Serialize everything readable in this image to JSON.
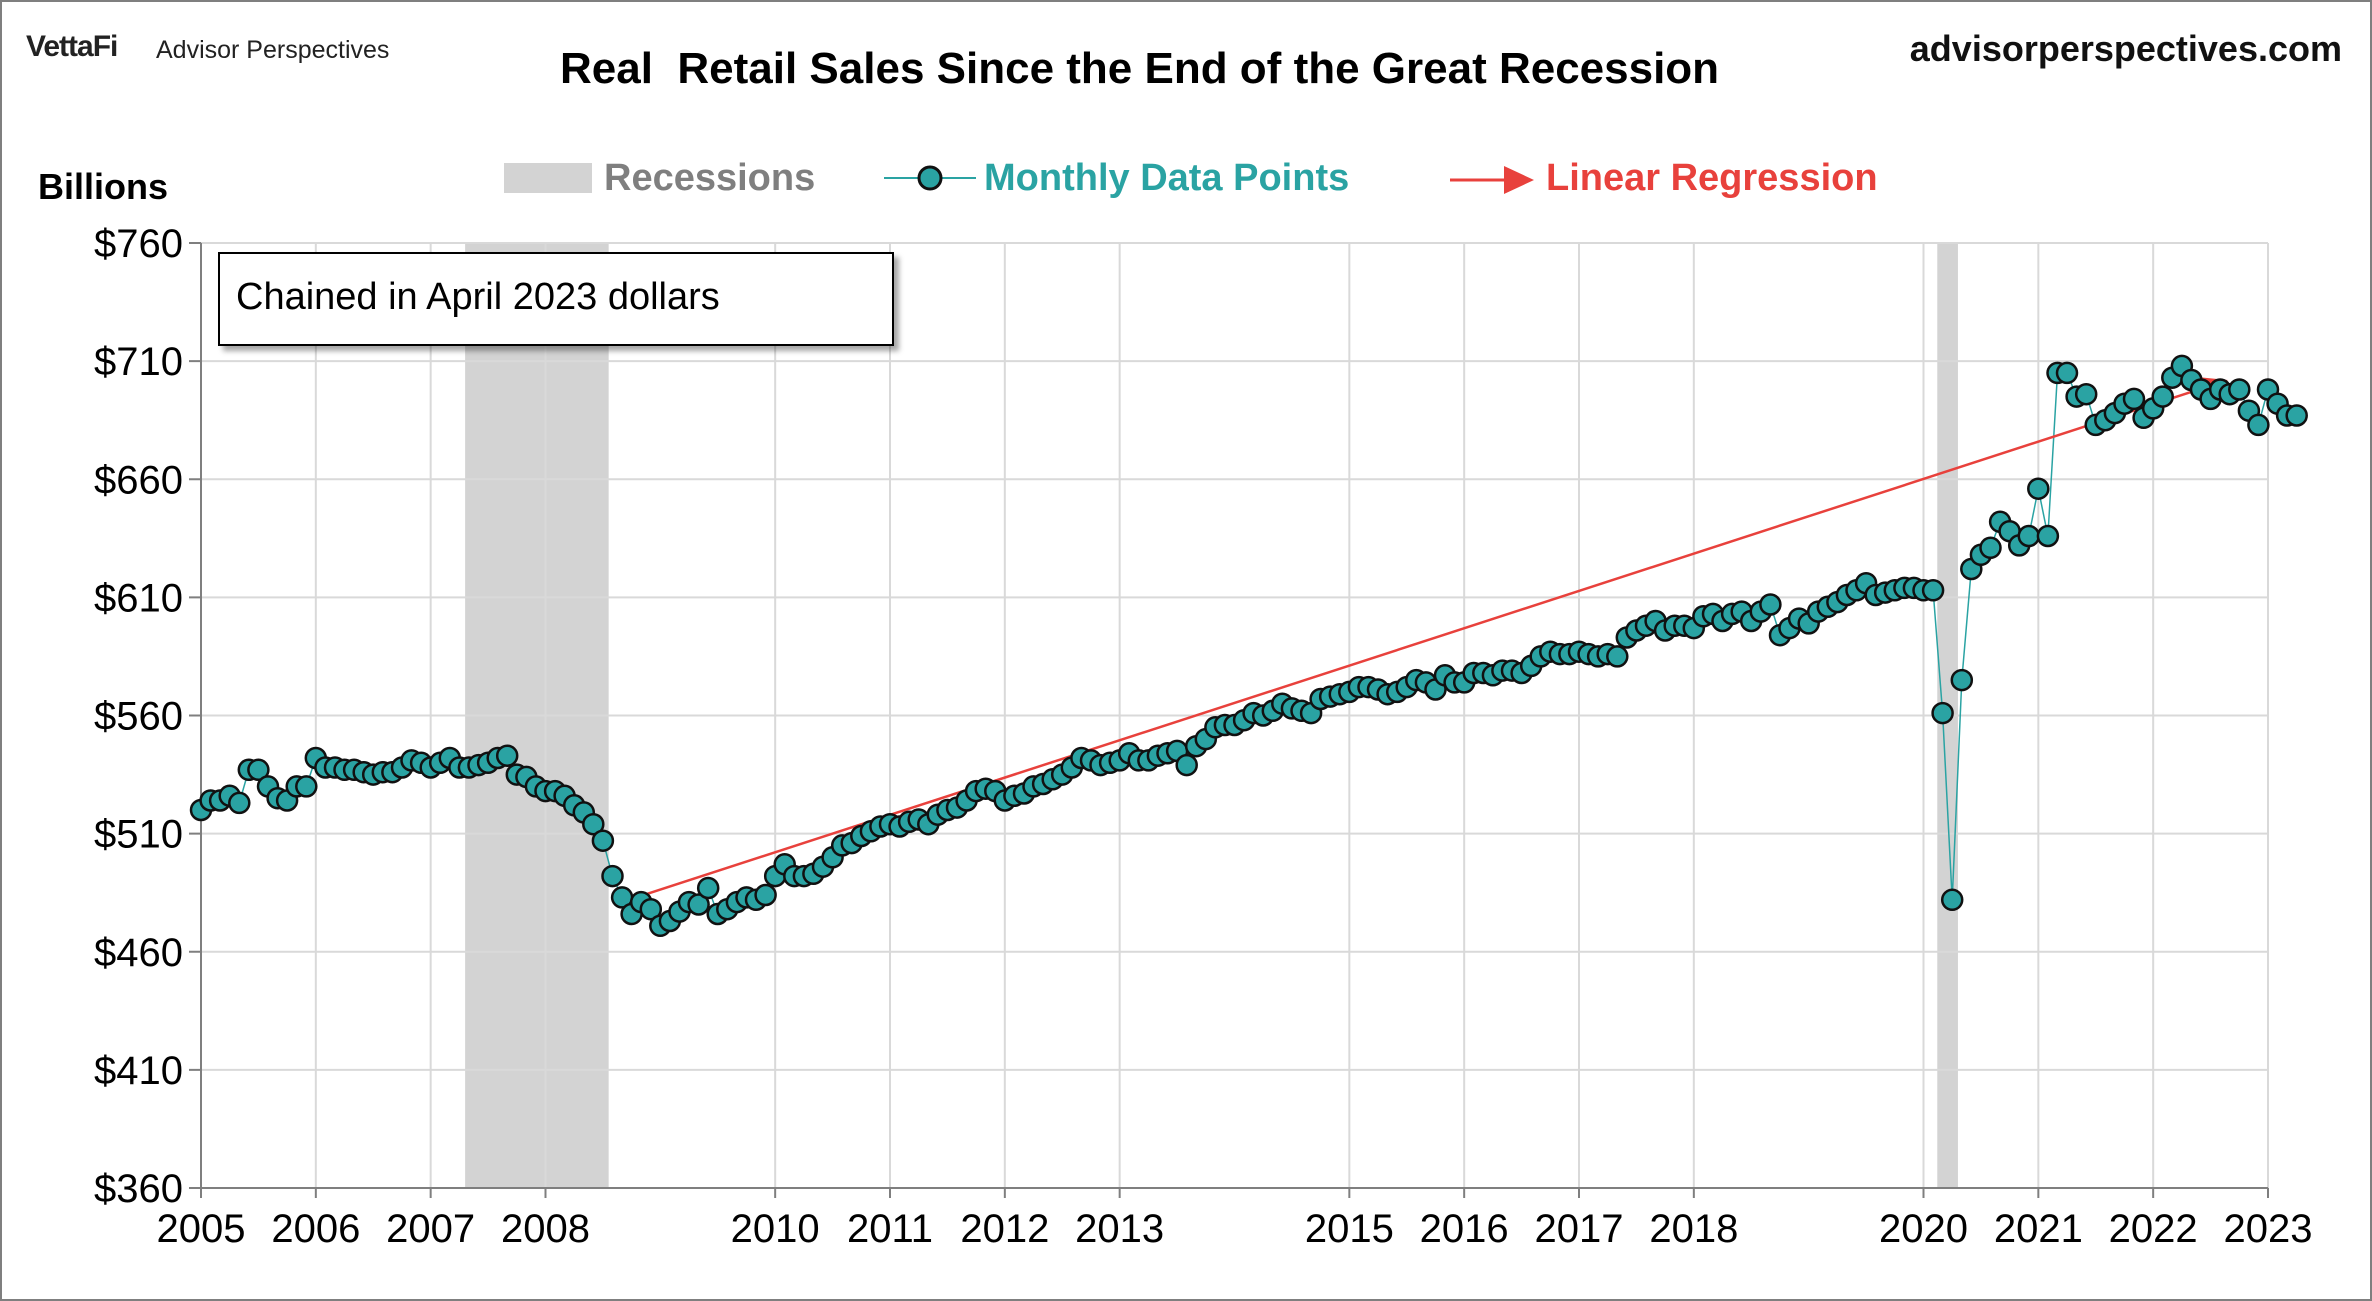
{
  "branding": {
    "vettafi": "VettaFi",
    "advisor_perspectives": "Advisor Perspectives",
    "site": "advisorperspectives.com"
  },
  "colors": {
    "marker_fill": "#2aa3a3",
    "marker_edge": "#111111",
    "line": "#2aa3a3",
    "regression": "#e8413c",
    "recession": "#d3d3d3",
    "grid": "#d9d9d9"
  },
  "chart_data": {
    "type": "line",
    "title": "Real  Retail Sales Since the End of the Great Recession",
    "ylabel": "Billions",
    "note": "Chained in April 2023 dollars",
    "ylim": [
      360,
      760
    ],
    "xlim": [
      2005,
      2023
    ],
    "y_ticks": [
      760,
      710,
      660,
      610,
      560,
      510,
      460,
      410,
      360
    ],
    "y_tick_labels": [
      "$760",
      "$710",
      "$660",
      "$610",
      "$560",
      "$510",
      "$460",
      "$410",
      "$360"
    ],
    "x_ticks": [
      2005,
      2006,
      2007,
      2008,
      2010,
      2011,
      2012,
      2013,
      2015,
      2016,
      2017,
      2018,
      2020,
      2021,
      2022,
      2023
    ],
    "x_tick_labels": [
      "2005",
      "2006",
      "2007",
      "2008",
      "2010",
      "2011",
      "2012",
      "2013",
      "2015",
      "2016",
      "2017",
      "2018",
      "2020",
      "2021",
      "2022",
      "2023"
    ],
    "legend": {
      "placement": "top",
      "recessions": "Recessions",
      "monthly": "Monthly Data Points",
      "regression": "Linear Regression"
    },
    "recessions": [
      {
        "start": 2007.3,
        "end": 2008.55
      },
      {
        "start": 2020.12,
        "end": 2020.3
      }
    ],
    "regression": {
      "x0": 2008.6,
      "y0": 480,
      "x1": 2022.65,
      "y1": 702
    },
    "series": [
      {
        "name": "Monthly Data Points",
        "start": 2005.0,
        "step": 0.0833333,
        "values": [
          520,
          524,
          524,
          526,
          523,
          537,
          537,
          530,
          525,
          524,
          530,
          530,
          542,
          538,
          538,
          537,
          537,
          536,
          535,
          536,
          536,
          538,
          541,
          540,
          538,
          540,
          542,
          538,
          538,
          539,
          540,
          542,
          543,
          535,
          534,
          530,
          528,
          528,
          526,
          522,
          519,
          514,
          507,
          492,
          483,
          476,
          481,
          478,
          471,
          473,
          477,
          481,
          480,
          487,
          476,
          478,
          481,
          483,
          482,
          484,
          492,
          497,
          492,
          492,
          493,
          496,
          500,
          505,
          506,
          509,
          511,
          513,
          514,
          513,
          515,
          516,
          514,
          518,
          520,
          521,
          524,
          528,
          529,
          528,
          524,
          526,
          527,
          530,
          531,
          533,
          535,
          538,
          542,
          541,
          539,
          540,
          541,
          544,
          541,
          541,
          543,
          544,
          545,
          539,
          547,
          550,
          555,
          556,
          556,
          558,
          561,
          560,
          562,
          565,
          563,
          562,
          561,
          567,
          568,
          569,
          570,
          572,
          572,
          571,
          569,
          570,
          572,
          575,
          574,
          571,
          577,
          574,
          574,
          578,
          578,
          577,
          579,
          579,
          578,
          581,
          585,
          587,
          586,
          586,
          587,
          586,
          585,
          586,
          585,
          593,
          596,
          598,
          600,
          596,
          598,
          598,
          597,
          602,
          603,
          600,
          603,
          604,
          600,
          604,
          607,
          594,
          597,
          601,
          599,
          604,
          606,
          608,
          611,
          613,
          616,
          611,
          612,
          613,
          614,
          614,
          613,
          613,
          561,
          482,
          575,
          622,
          628,
          631,
          642,
          638,
          632,
          636,
          656,
          636,
          705,
          705,
          695,
          696,
          683,
          685,
          688,
          692,
          694,
          686,
          690,
          695,
          703,
          708,
          702,
          698,
          694,
          698,
          696,
          698,
          689,
          683,
          698,
          692,
          687,
          687
        ]
      }
    ]
  }
}
